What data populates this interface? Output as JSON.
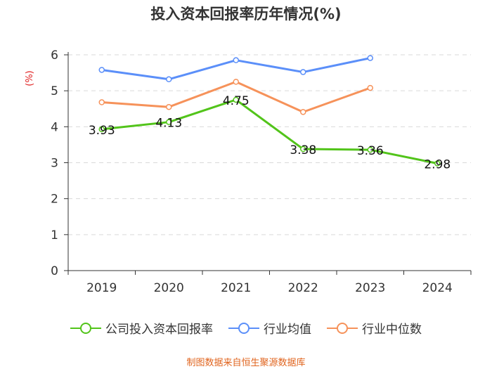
{
  "chart_data": {
    "type": "line",
    "title": "投入资本回报率历年情况(%)",
    "ylabel": "(%)",
    "xlabel": "",
    "categories": [
      "2019",
      "2020",
      "2021",
      "2022",
      "2023",
      "2024"
    ],
    "ylim": [
      0,
      6
    ],
    "yticks": [
      0,
      1,
      2,
      3,
      4,
      5,
      6
    ],
    "grid": true,
    "legend_position": "bottom",
    "series": [
      {
        "name": "公司投入资本回报率",
        "color": "#52c41a",
        "values": [
          3.93,
          4.13,
          4.75,
          3.38,
          3.36,
          2.98
        ],
        "labels": [
          "3.93",
          "4.13",
          "4.75",
          "3.38",
          "3.36",
          "2.98"
        ],
        "show_labels": true
      },
      {
        "name": "行业均值",
        "color": "#5b8ff9",
        "values": [
          5.58,
          5.32,
          5.85,
          5.52,
          5.91,
          null
        ],
        "show_labels": false
      },
      {
        "name": "行业中位数",
        "color": "#f6925a",
        "values": [
          4.68,
          4.55,
          5.25,
          4.41,
          5.08,
          null
        ],
        "show_labels": false
      }
    ]
  },
  "footer": {
    "source": "制图数据来自恒生聚源数据库"
  }
}
